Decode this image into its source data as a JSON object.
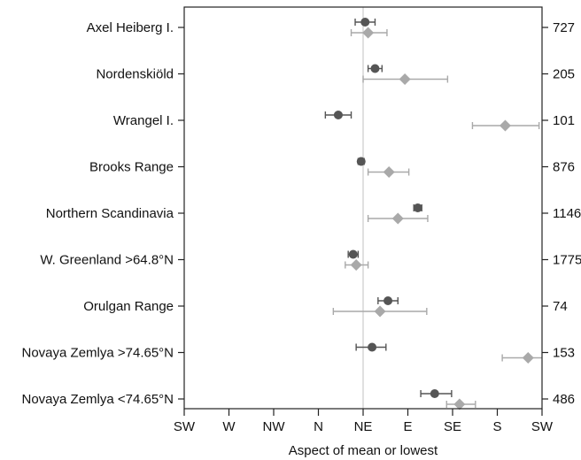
{
  "chart_data": {
    "type": "scatter",
    "title": "",
    "xlabel": "Aspect of mean or lowest",
    "ylabel": "",
    "x_scale": "compass",
    "xlim": [
      -180,
      180
    ],
    "x_ticks": [
      {
        "value": -180,
        "label": "SW"
      },
      {
        "value": -135,
        "label": "W"
      },
      {
        "value": -90,
        "label": "NW"
      },
      {
        "value": -45,
        "label": "N"
      },
      {
        "value": 0,
        "label": "NE"
      },
      {
        "value": 45,
        "label": "E"
      },
      {
        "value": 90,
        "label": "SE"
      },
      {
        "value": 135,
        "label": "S"
      },
      {
        "value": 180,
        "label": "SW"
      }
    ],
    "reference_line_x": 0,
    "reference_line_color": "#cccccc",
    "categories": [
      "Axel Heiberg I.",
      "Nordenskiöld",
      "Wrangel I.",
      "Brooks Range",
      "Northern Scandinavia",
      "W. Greenland >64.8°N",
      "Orulgan Range",
      "Novaya Zemlya >74.65°N",
      "Novaya Zemlya <74.65°N"
    ],
    "counts": [
      "727",
      "205",
      "101",
      "876",
      "1146",
      "1775",
      "74",
      "153",
      "486"
    ],
    "series": [
      {
        "marker": "circle",
        "color": "#555555",
        "values": [
          {
            "x": 2,
            "lo": -8,
            "hi": 12
          },
          {
            "x": 12,
            "lo": 5,
            "hi": 19
          },
          {
            "x": -25,
            "lo": -38,
            "hi": -12
          },
          {
            "x": -2,
            "lo": -5,
            "hi": 1
          },
          {
            "x": 55,
            "lo": 51,
            "hi": 59
          },
          {
            "x": -10,
            "lo": -15,
            "hi": -5
          },
          {
            "x": 25,
            "lo": 15,
            "hi": 35
          },
          {
            "x": 9,
            "lo": -7,
            "hi": 23
          },
          {
            "x": 72,
            "lo": 58,
            "hi": 89
          }
        ]
      },
      {
        "marker": "diamond",
        "color": "#a9a9a9",
        "values": [
          {
            "x": 5,
            "lo": -12,
            "hi": 24
          },
          {
            "x": 42,
            "lo": 0,
            "hi": 85
          },
          {
            "x": 143,
            "lo": 110,
            "hi": 177
          },
          {
            "x": 26,
            "lo": 5,
            "hi": 46
          },
          {
            "x": 35,
            "lo": 5,
            "hi": 65
          },
          {
            "x": -7,
            "lo": -18,
            "hi": 5
          },
          {
            "x": 17,
            "lo": -30,
            "hi": 64
          },
          {
            "x": 166,
            "lo": 140,
            "hi": 190
          },
          {
            "x": 97,
            "lo": 84,
            "hi": 113
          }
        ]
      }
    ]
  }
}
